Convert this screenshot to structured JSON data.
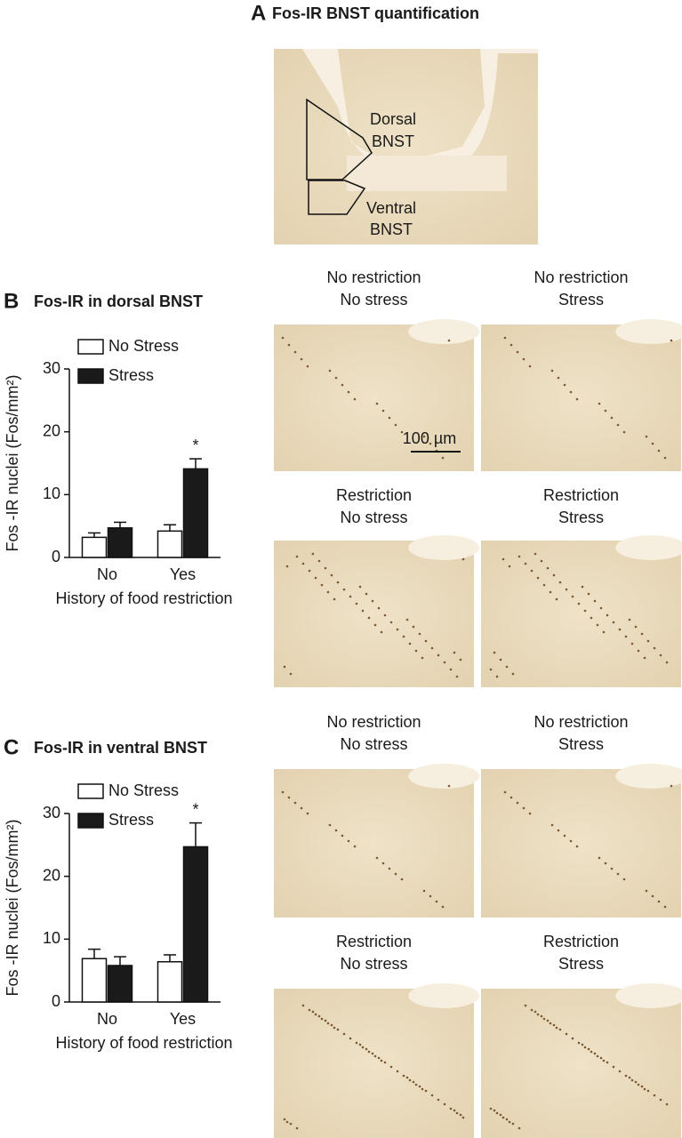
{
  "panel_a": {
    "label": "A",
    "title": "Fos-IR BNST quantification",
    "regions": [
      [
        "Dorsal",
        "BNST"
      ],
      [
        "Ventral",
        "BNST"
      ]
    ]
  },
  "chart_data": [
    {
      "type": "bar",
      "panel": "B",
      "title": "Fos-IR in dorsal BNST",
      "y_label": "Fos -IR nuclei (Fos/mm²)",
      "x_label": "History of food restriction",
      "categories": [
        "No",
        "Yes"
      ],
      "series": [
        {
          "name": "No Stress",
          "color": "#ffffff",
          "values": [
            3.2,
            4.2
          ],
          "errors": [
            0.7,
            1.0
          ],
          "annotations": [
            null,
            null
          ]
        },
        {
          "name": "Stress",
          "color": "#1a1a1a",
          "values": [
            4.7,
            14.1
          ],
          "errors": [
            0.9,
            1.6
          ],
          "annotations": [
            null,
            "*"
          ]
        }
      ],
      "ylim": [
        0,
        30
      ],
      "yticks": [
        0,
        10,
        20,
        30
      ]
    },
    {
      "type": "bar",
      "panel": "C",
      "title": "Fos-IR in ventral BNST",
      "y_label": "Fos -IR nuclei (Fos/mm²)",
      "x_label": "History of food restriction",
      "categories": [
        "No",
        "Yes"
      ],
      "series": [
        {
          "name": "No Stress",
          "color": "#ffffff",
          "values": [
            6.9,
            6.4
          ],
          "errors": [
            1.5,
            1.1
          ],
          "annotations": [
            null,
            null
          ]
        },
        {
          "name": "Stress",
          "color": "#1a1a1a",
          "values": [
            5.8,
            24.7
          ],
          "errors": [
            1.4,
            3.8
          ],
          "annotations": [
            null,
            "*"
          ]
        }
      ],
      "ylim": [
        0,
        30
      ],
      "yticks": [
        0,
        10,
        20,
        30
      ]
    }
  ],
  "micrographs": [
    [
      [
        "No restriction",
        "No stress"
      ],
      [
        "No restriction",
        "Stress"
      ],
      [
        "Restriction",
        "No stress"
      ],
      [
        "Restriction",
        "Stress"
      ]
    ],
    [
      [
        "No restriction",
        "No stress"
      ],
      [
        "No restriction",
        "Stress"
      ],
      [
        "Restriction",
        "No stress"
      ],
      [
        "Restriction",
        "Stress"
      ]
    ]
  ],
  "scale_bar": "100 µm"
}
